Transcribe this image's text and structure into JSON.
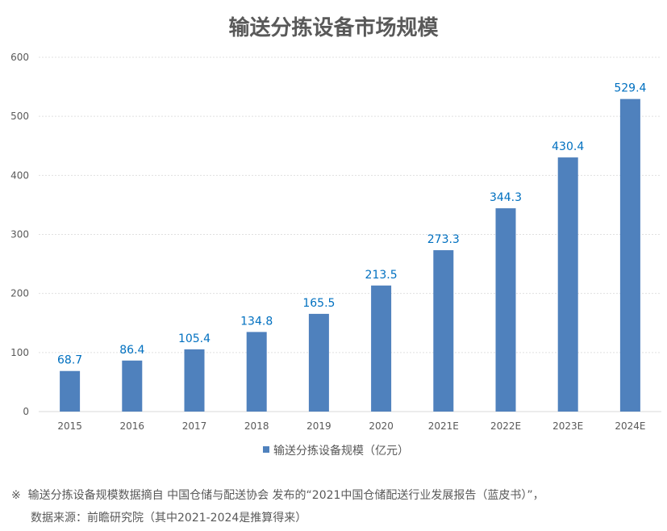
{
  "chart_data": {
    "type": "bar",
    "title": "输送分拣设备市场规模",
    "categories": [
      "2015",
      "2016",
      "2017",
      "2018",
      "2019",
      "2020",
      "2021E",
      "2022E",
      "2023E",
      "2024E"
    ],
    "series": [
      {
        "name": "输送分拣设备规模（亿元）",
        "values": [
          68.7,
          86.4,
          105.4,
          134.8,
          165.5,
          213.5,
          273.3,
          344.3,
          430.4,
          529.4
        ]
      }
    ],
    "ylim": [
      0,
      600
    ],
    "yticks": [
      0,
      100,
      200,
      300,
      400,
      500,
      600
    ],
    "grid": true,
    "legend": "bottom",
    "colors": {
      "bar": "#4f81bd",
      "label": "#0070c0"
    }
  },
  "notes": {
    "symbol": "※",
    "line1": "输送分拣设备规模数据摘自 中国仓储与配送协会 发布的“2021中国仓储配送行业发展报告（蓝皮书）”，",
    "line2": "数据来源：前瞻研究院（其中2021-2024是推算得来）"
  }
}
